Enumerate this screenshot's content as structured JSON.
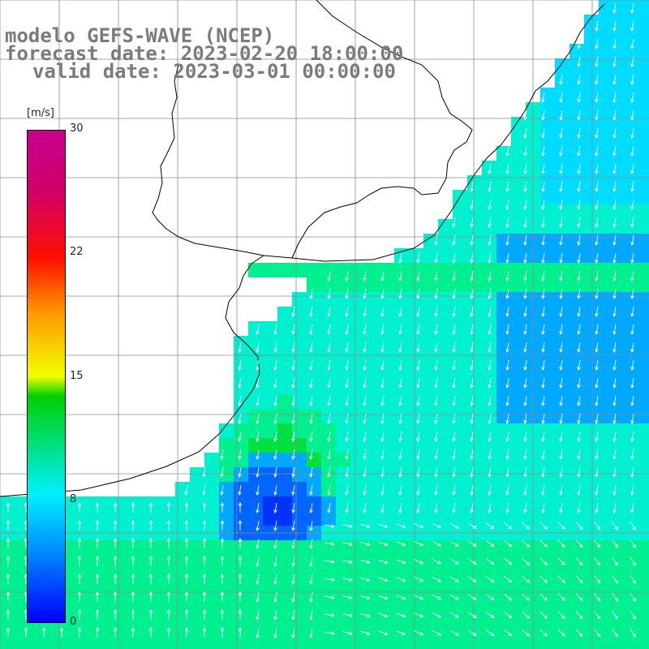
{
  "header": {
    "model_line": "modelo GEFS-WAVE (NCEP)",
    "forecast_line": "forecast date: 2023-02-20 18:00:00",
    "valid_line": "valid date: 2023-03-01 00:00:00"
  },
  "colorbar": {
    "unit": "[m/s]",
    "ticks": [
      {
        "label": "30",
        "value": 30
      },
      {
        "label": "22",
        "value": 22
      },
      {
        "label": "15",
        "value": 15
      },
      {
        "label": "8",
        "value": 8
      },
      {
        "label": "0",
        "value": 0
      }
    ],
    "colors": [
      "#0000ff",
      "#0087ff",
      "#00f0ff",
      "#00d000",
      "#f0ff00",
      "#ff9800",
      "#ff1000",
      "#c8008c"
    ]
  },
  "map": {
    "variable": "wind speed and direction",
    "land_color": "#ffffff",
    "grid_color": "#8c8c8c",
    "arrow_color": "#ffffff"
  }
}
